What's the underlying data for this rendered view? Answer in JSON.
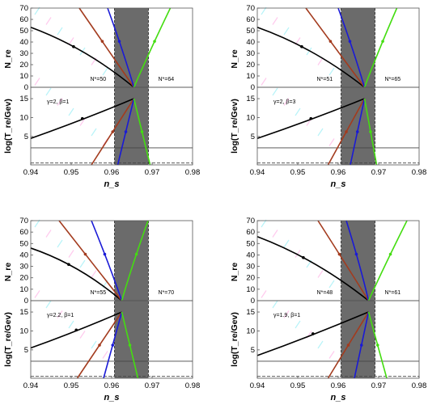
{
  "chart_data": [
    {
      "type": "line",
      "xlabel": "n_s",
      "ylabel_top": "N_re",
      "ylabel_bottom": "log(T_re/Gev)",
      "xlim": [
        0.94,
        0.98
      ],
      "ylim_top": [
        0,
        70
      ],
      "ylim_bottom": [
        -2.5,
        18
      ],
      "x_ticks": [
        "0.94",
        "0.95",
        "0.96",
        "0.97",
        "0.98"
      ],
      "y_ticks_top": [
        "0",
        "10",
        "20",
        "30",
        "40",
        "50",
        "60",
        "70"
      ],
      "y_ticks_bottom": [
        "5",
        "10",
        "15"
      ],
      "band": [
        0.9607,
        0.9691
      ],
      "converge_x": 0.9655,
      "params_label": "γ=2, β=1",
      "nstar_left": "N*=50",
      "nstar_right": "N*=64",
      "series": [
        {
          "color": "#000000",
          "re_x": [
            0.94,
            0.9655
          ],
          "re_y": [
            53,
            0
          ],
          "t_x": [
            0.94,
            0.9655
          ],
          "t_y": [
            4.5,
            15
          ]
        },
        {
          "color": "#a33b1e",
          "re_x": [
            0.952,
            0.9655
          ],
          "re_y": [
            70,
            0
          ],
          "t_x": [
            0.955,
            0.9655
          ],
          "t_y": [
            -2.5,
            15
          ]
        },
        {
          "color": "#1a1ad6",
          "re_x": [
            0.959,
            0.9655
          ],
          "re_y": [
            70,
            0
          ],
          "t_x": [
            0.9615,
            0.9655
          ],
          "t_y": [
            -2.5,
            15
          ]
        },
        {
          "color": "#44dd11",
          "re_x": [
            0.9745,
            0.9655
          ],
          "re_y": [
            70,
            0
          ],
          "t_x": [
            0.9695,
            0.9655
          ],
          "t_y": [
            -2.5,
            15
          ]
        }
      ]
    },
    {
      "type": "line",
      "xlabel": "n_s",
      "ylabel_top": "N_re",
      "ylabel_bottom": "log(T_re/Gev)",
      "xlim": [
        0.94,
        0.98
      ],
      "ylim_top": [
        0,
        70
      ],
      "ylim_bottom": [
        -2.5,
        18
      ],
      "x_ticks": [
        "0.94",
        "0.95",
        "0.96",
        "0.97",
        "0.98"
      ],
      "y_ticks_top": [
        "0",
        "10",
        "20",
        "30",
        "40",
        "50",
        "60",
        "70"
      ],
      "y_ticks_bottom": [
        "5",
        "10",
        "15"
      ],
      "band": [
        0.9607,
        0.9691
      ],
      "converge_x": 0.9665,
      "params_label": "γ=2, β=3",
      "nstar_left": "N*=51",
      "nstar_right": "N*=65",
      "series": [
        {
          "color": "#000000",
          "re_x": [
            0.94,
            0.9665
          ],
          "re_y": [
            53,
            0
          ],
          "t_x": [
            0.94,
            0.9665
          ],
          "t_y": [
            4.5,
            15
          ]
        },
        {
          "color": "#a33b1e",
          "re_x": [
            0.952,
            0.9665
          ],
          "re_y": [
            70,
            0
          ],
          "t_x": [
            0.9575,
            0.9665
          ],
          "t_y": [
            -2.5,
            15
          ]
        },
        {
          "color": "#1a1ad6",
          "re_x": [
            0.96,
            0.9665
          ],
          "re_y": [
            70,
            0
          ],
          "t_x": [
            0.963,
            0.9665
          ],
          "t_y": [
            -2.5,
            15
          ]
        },
        {
          "color": "#44dd11",
          "re_x": [
            0.9745,
            0.9665
          ],
          "re_y": [
            70,
            0
          ],
          "t_x": [
            0.9695,
            0.9665
          ],
          "t_y": [
            -2.5,
            15
          ]
        }
      ]
    },
    {
      "type": "line",
      "xlabel": "n_s",
      "ylabel_top": "N_re",
      "ylabel_bottom": "log(T_re/Gev)",
      "xlim": [
        0.94,
        0.98
      ],
      "ylim_top": [
        0,
        70
      ],
      "ylim_bottom": [
        -2.5,
        18
      ],
      "x_ticks": [
        "0.94",
        "0.95",
        "0.96",
        "0.97",
        "0.98"
      ],
      "y_ticks_top": [
        "0",
        "10",
        "20",
        "30",
        "40",
        "50",
        "60",
        "70"
      ],
      "y_ticks_bottom": [
        "5",
        "10",
        "15"
      ],
      "band": [
        0.9607,
        0.9691
      ],
      "converge_x": 0.9625,
      "params_label": "γ=2.2, β=1",
      "nstar_left": "N*=55",
      "nstar_right": "N*=70",
      "series": [
        {
          "color": "#000000",
          "re_x": [
            0.94,
            0.9625
          ],
          "re_y": [
            46,
            0
          ],
          "t_x": [
            0.94,
            0.9625
          ],
          "t_y": [
            5.5,
            15
          ]
        },
        {
          "color": "#a33b1e",
          "re_x": [
            0.947,
            0.9625
          ],
          "re_y": [
            70,
            0
          ],
          "t_x": [
            0.9515,
            0.9625
          ],
          "t_y": [
            -2.5,
            15
          ]
        },
        {
          "color": "#1a1ad6",
          "re_x": [
            0.955,
            0.9625
          ],
          "re_y": [
            70,
            0
          ],
          "t_x": [
            0.958,
            0.9625
          ],
          "t_y": [
            -2.5,
            15
          ]
        },
        {
          "color": "#44dd11",
          "re_x": [
            0.969,
            0.9625
          ],
          "re_y": [
            70,
            0
          ],
          "t_x": [
            0.9665,
            0.9625
          ],
          "t_y": [
            -2.5,
            15
          ]
        }
      ]
    },
    {
      "type": "line",
      "xlabel": "n_s",
      "ylabel_top": "N_re",
      "ylabel_bottom": "log(T_re/Gev)",
      "xlim": [
        0.94,
        0.98
      ],
      "ylim_top": [
        0,
        70
      ],
      "ylim_bottom": [
        -2.5,
        18
      ],
      "x_ticks": [
        "0.94",
        "0.95",
        "0.96",
        "0.97",
        "0.98"
      ],
      "y_ticks_top": [
        "0",
        "10",
        "20",
        "30",
        "40",
        "50",
        "60",
        "70"
      ],
      "y_ticks_bottom": [
        "5",
        "10",
        "15"
      ],
      "band": [
        0.9607,
        0.9691
      ],
      "converge_x": 0.9675,
      "params_label": "γ=1.9, β=1",
      "nstar_left": "N*=48",
      "nstar_right": "N*=61",
      "series": [
        {
          "color": "#000000",
          "re_x": [
            0.94,
            0.9675
          ],
          "re_y": [
            56,
            0
          ],
          "t_x": [
            0.94,
            0.9675
          ],
          "t_y": [
            3.5,
            15
          ]
        },
        {
          "color": "#a33b1e",
          "re_x": [
            0.955,
            0.9675
          ],
          "re_y": [
            70,
            0
          ],
          "t_x": [
            0.9575,
            0.9675
          ],
          "t_y": [
            -2.5,
            15
          ]
        },
        {
          "color": "#1a1ad6",
          "re_x": [
            0.962,
            0.9675
          ],
          "re_y": [
            70,
            0
          ],
          "t_x": [
            0.964,
            0.9675
          ],
          "t_y": [
            -2.5,
            15
          ]
        },
        {
          "color": "#44dd11",
          "re_x": [
            0.977,
            0.9675
          ],
          "re_y": [
            70,
            0
          ],
          "t_x": [
            0.972,
            0.9675
          ],
          "t_y": [
            -2.5,
            15
          ]
        }
      ]
    }
  ],
  "reference_lines": {
    "log_T_solid": 2,
    "log_T_dashed": -2
  }
}
